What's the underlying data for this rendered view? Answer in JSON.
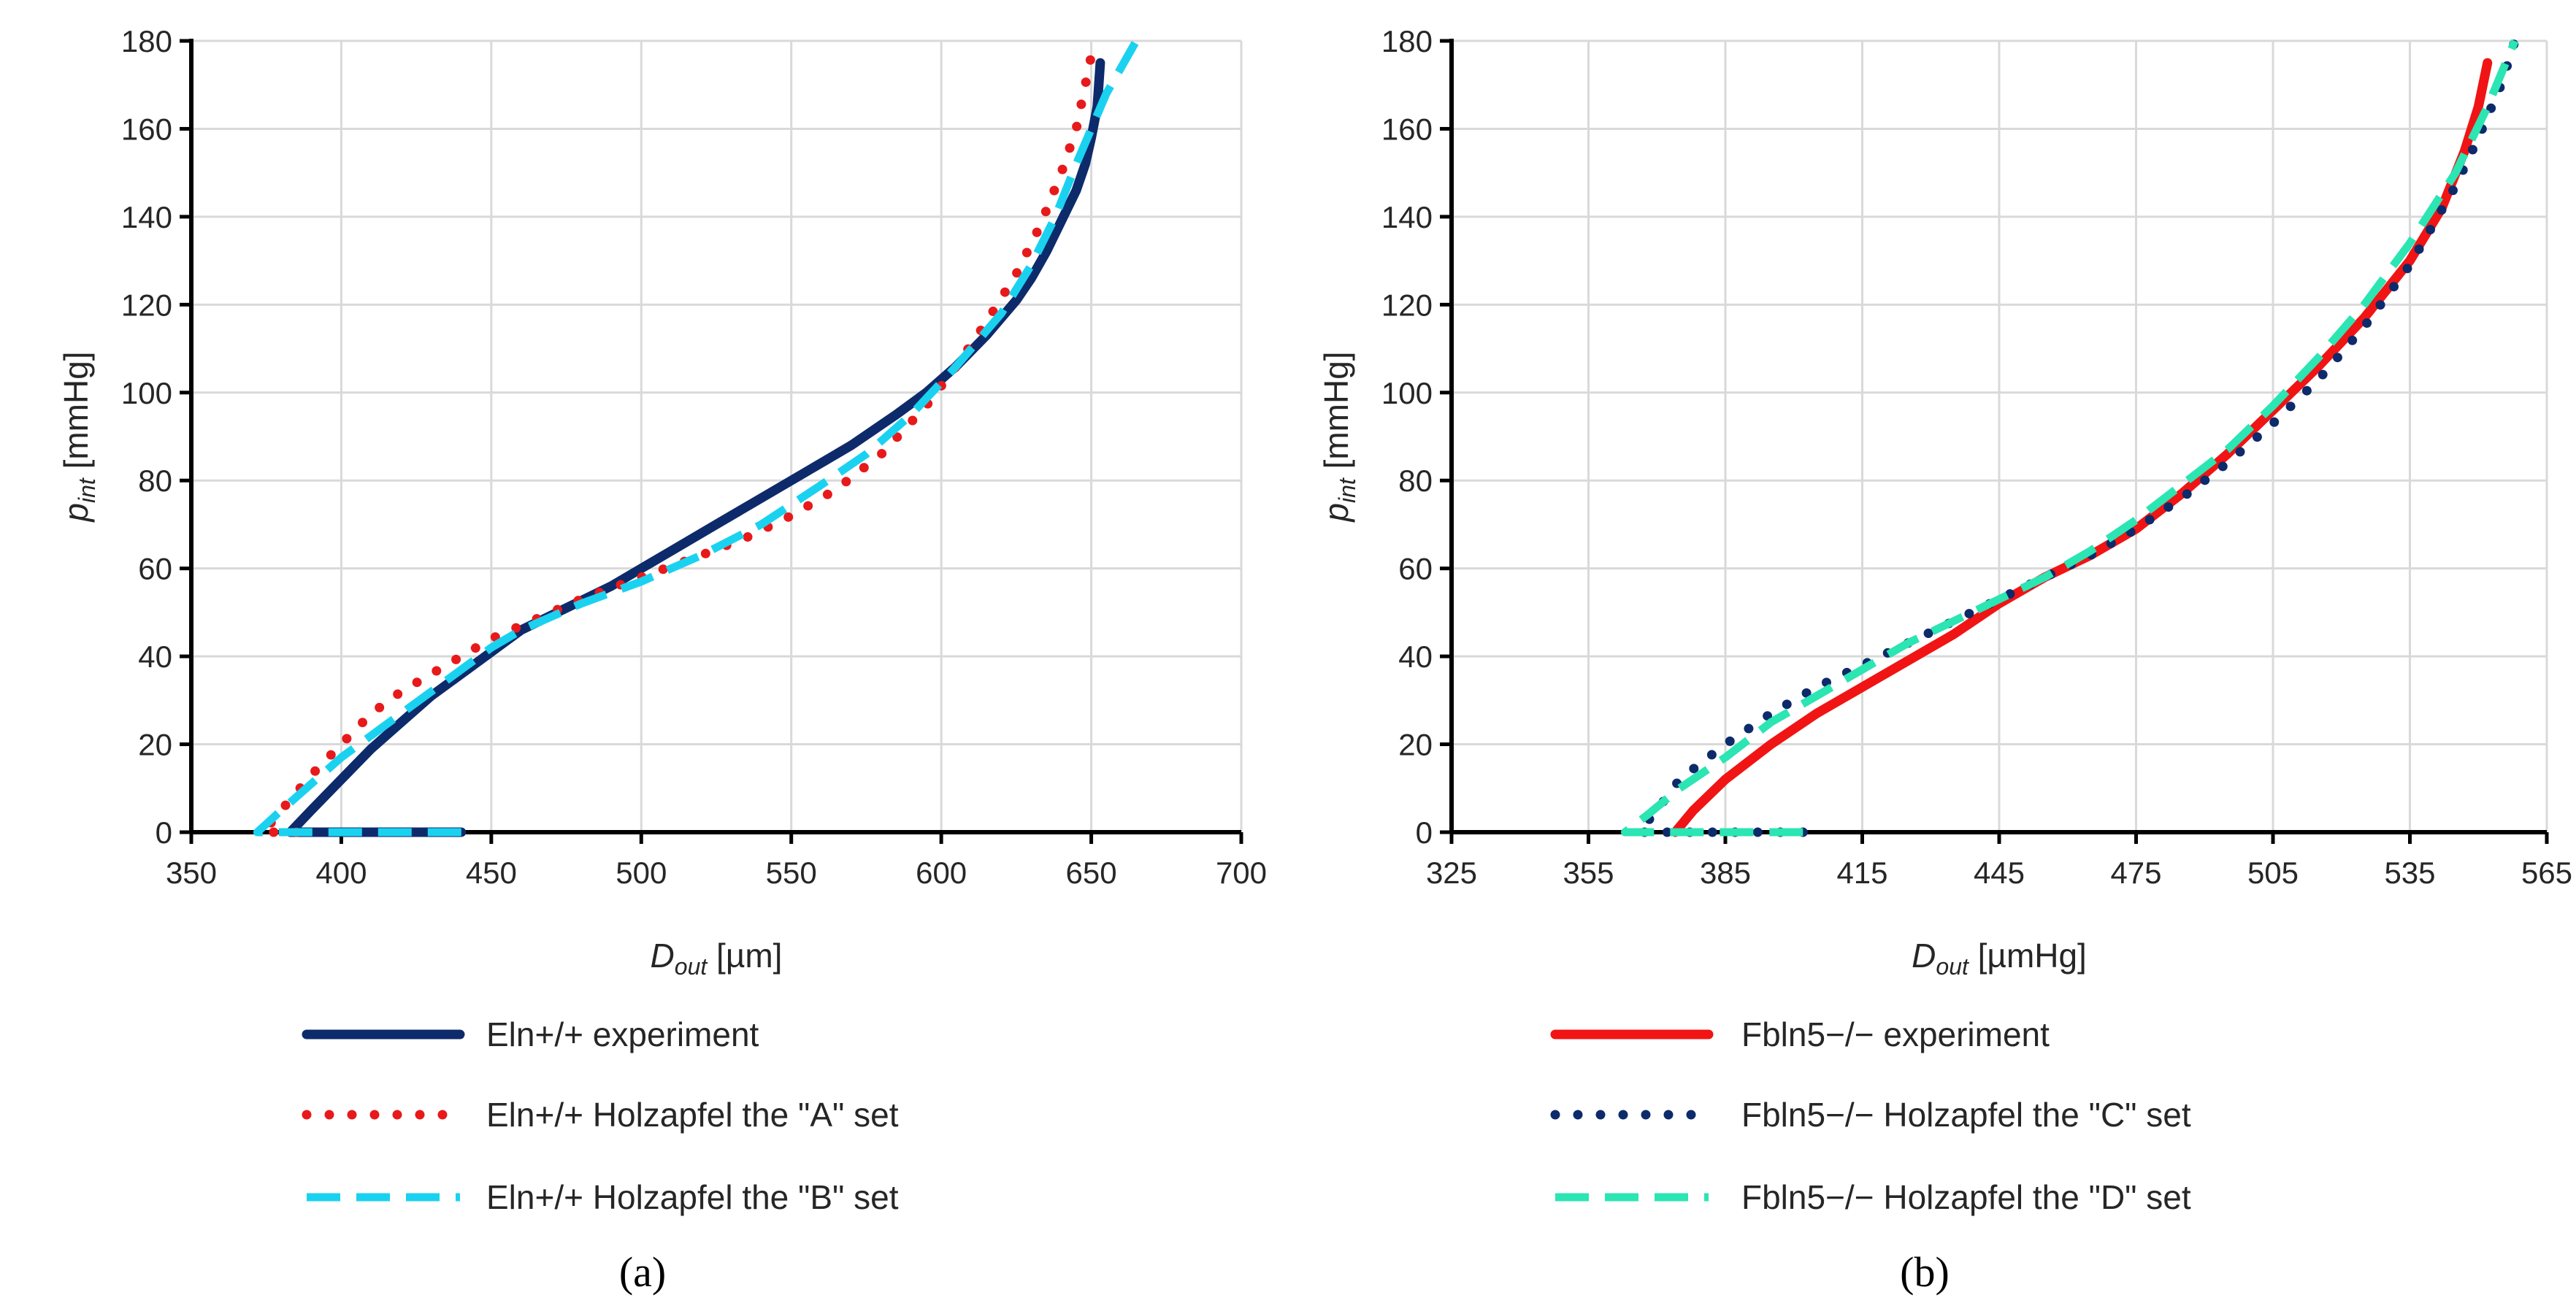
{
  "chart_data": [
    {
      "type": "line",
      "panel_label": "(a)",
      "xlabel": {
        "main": "D",
        "sub": "out",
        "unit": " [µm]"
      },
      "ylabel": {
        "main": "p",
        "sub": "int",
        "unit": " [mmHg]"
      },
      "xlim": [
        350,
        700
      ],
      "ylim": [
        0,
        180
      ],
      "xticks": [
        350,
        400,
        450,
        500,
        550,
        600,
        650,
        700
      ],
      "yticks": [
        0,
        20,
        40,
        60,
        80,
        100,
        120,
        140,
        160,
        180
      ],
      "xtick_labels": [
        "350",
        "400",
        "450",
        "500",
        "550",
        "600",
        "650",
        "700"
      ],
      "ytick_labels": [
        "0",
        "20",
        "40",
        "60",
        "80",
        "100",
        "120",
        "140",
        "160",
        "180"
      ],
      "grid": true,
      "series": [
        {
          "name": "Eln+/+ experiment",
          "color": "#0d2a6b",
          "style": "solid",
          "x": [
            440,
            383,
            390,
            400,
            410,
            420,
            430,
            440,
            450,
            460,
            475,
            490,
            500,
            510,
            525,
            540,
            555,
            570,
            585,
            595,
            605,
            615,
            625,
            630,
            635,
            640,
            645,
            648,
            650,
            652,
            653
          ],
          "y": [
            0,
            0,
            5,
            12,
            19,
            25,
            31,
            36,
            41,
            46,
            51,
            56,
            60,
            64,
            70,
            76,
            82,
            88,
            95,
            100,
            106,
            113,
            121,
            126,
            132,
            139,
            146,
            152,
            158,
            165,
            175
          ]
        },
        {
          "name": "Eln+/+ Holzapfel the \"A\" set",
          "color": "#e8191a",
          "style": "dotted",
          "x": [
            385,
            374,
            380,
            390,
            400,
            410,
            420,
            430,
            440,
            450,
            460,
            470,
            480,
            500,
            520,
            535,
            550,
            565,
            580,
            595,
            605,
            615,
            625,
            633,
            640,
            645,
            648,
            651
          ],
          "y": [
            0,
            0,
            5,
            13,
            20,
            27,
            32,
            36,
            40,
            44,
            47,
            50,
            53,
            58,
            63,
            67,
            72,
            78,
            86,
            97,
            106,
            116,
            127,
            138,
            150,
            160,
            170,
            180
          ]
        },
        {
          "name": "Eln+/+ Holzapfel the \"B\" set",
          "color": "#1ad2f0",
          "style": "dashed",
          "x": [
            440,
            372,
            380,
            390,
            400,
            410,
            420,
            430,
            440,
            450,
            460,
            470,
            480,
            500,
            520,
            540,
            560,
            575,
            590,
            605,
            620,
            630,
            638,
            645,
            650,
            655,
            660,
            665
          ],
          "y": [
            0,
            0,
            5,
            11,
            17,
            22,
            27,
            32,
            37,
            42,
            46,
            49,
            52,
            57,
            63,
            70,
            79,
            86,
            95,
            106,
            118,
            129,
            140,
            152,
            160,
            168,
            174,
            180
          ]
        }
      ],
      "legend": [
        {
          "label": "Eln+/+ experiment",
          "color": "#0d2a6b",
          "style": "solid"
        },
        {
          "label": "Eln+/+ Holzapfel the \"A\" set",
          "color": "#e8191a",
          "style": "dotted"
        },
        {
          "label": "Eln+/+ Holzapfel the \"B\" set",
          "color": "#1ad2f0",
          "style": "dashed"
        }
      ]
    },
    {
      "type": "line",
      "panel_label": "(b)",
      "xlabel": {
        "main": "D",
        "sub": "out",
        "unit": " [µmHg]"
      },
      "ylabel": {
        "main": "p",
        "sub": "int",
        "unit": " [mmHg]"
      },
      "xlim": [
        325,
        565
      ],
      "ylim": [
        0,
        180
      ],
      "xticks": [
        325,
        355,
        385,
        415,
        445,
        475,
        505,
        535,
        565
      ],
      "yticks": [
        0,
        20,
        40,
        60,
        80,
        100,
        120,
        140,
        160,
        180
      ],
      "xtick_labels": [
        "325",
        "355",
        "385",
        "415",
        "445",
        "475",
        "505",
        "535",
        "565"
      ],
      "ytick_labels": [
        "0",
        "20",
        "40",
        "60",
        "80",
        "100",
        "120",
        "140",
        "160",
        "180"
      ],
      "grid": true,
      "series": [
        {
          "name": "Fbln5−/− experiment",
          "color": "#f01414",
          "style": "solid",
          "x": [
            374,
            378,
            385,
            395,
            405,
            415,
            425,
            435,
            445,
            455,
            465,
            475,
            485,
            495,
            505,
            515,
            525,
            535,
            542,
            547,
            550,
            552
          ],
          "y": [
            0,
            5,
            12,
            20,
            27,
            33,
            39,
            45,
            52,
            58,
            63,
            69,
            77,
            86,
            96,
            106,
            117,
            130,
            142,
            155,
            165,
            175
          ]
        },
        {
          "name": "Fbln5−/− Holzapfel the \"C\" set",
          "color": "#0d2a6b",
          "style": "dotted",
          "x": [
            402,
            366,
            370,
            375,
            385,
            395,
            405,
            415,
            425,
            435,
            445,
            455,
            465,
            475,
            485,
            495,
            505,
            515,
            525,
            535,
            545,
            550,
            555,
            558
          ],
          "y": [
            0,
            0,
            5,
            12,
            20,
            27,
            33,
            38,
            43,
            48,
            53,
            58,
            63,
            69,
            76,
            84,
            93,
            103,
            115,
            129,
            147,
            158,
            170,
            180
          ]
        },
        {
          "name": "Fbln5−/− Holzapfel the \"D\" set",
          "color": "#2be5b3",
          "style": "dashed",
          "x": [
            402,
            363,
            368,
            375,
            385,
            395,
            405,
            415,
            425,
            435,
            445,
            455,
            465,
            475,
            485,
            495,
            505,
            515,
            525,
            535,
            545,
            552,
            558
          ],
          "y": [
            0,
            0,
            4,
            10,
            17,
            25,
            31,
            37,
            43,
            48,
            53,
            58,
            64,
            71,
            79,
            87,
            97,
            108,
            120,
            134,
            150,
            165,
            180
          ]
        }
      ],
      "legend": [
        {
          "label": "Fbln5−/− experiment",
          "color": "#f01414",
          "style": "solid"
        },
        {
          "label": "Fbln5−/− Holzapfel the \"C\" set",
          "color": "#0d2a6b",
          "style": "dotted"
        },
        {
          "label": "Fbln5−/− Holzapfel the \"D\" set",
          "color": "#2be5b3",
          "style": "dashed"
        }
      ]
    }
  ]
}
